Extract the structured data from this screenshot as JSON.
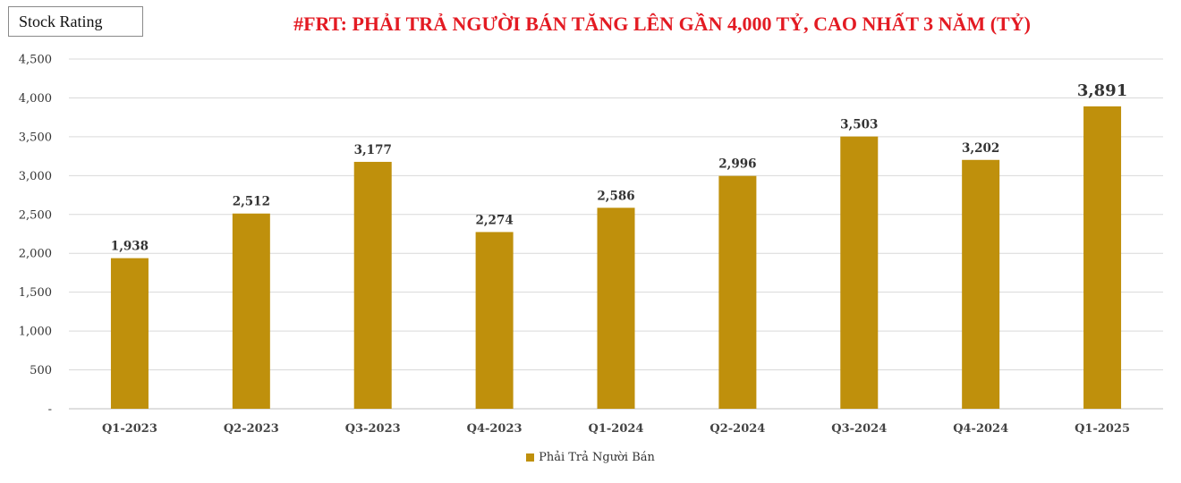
{
  "badge": {
    "label": "Stock Rating"
  },
  "colors": {
    "bar": "#bf900c",
    "highlight": "#e31b23",
    "grid": "#d9d9d9",
    "axis": "#bfbfbf"
  },
  "chart_data": {
    "type": "bar",
    "title": "#FRT: PHẢI TRẢ NGƯỜI BÁN TĂNG LÊN GẦN 4,000 TỶ, CAO NHẤT 3 NĂM (TỶ)",
    "categories": [
      "Q1-2023",
      "Q2-2023",
      "Q3-2023",
      "Q4-2023",
      "Q1-2024",
      "Q2-2024",
      "Q3-2024",
      "Q4-2024",
      "Q1-2025"
    ],
    "series": [
      {
        "name": "Phải Trả Người Bán",
        "values": [
          1938,
          2512,
          3177,
          2274,
          2586,
          2996,
          3503,
          3202,
          3891
        ]
      }
    ],
    "data_labels": [
      "1,938",
      "2,512",
      "3,177",
      "2,274",
      "2,586",
      "2,996",
      "3,503",
      "3,202",
      "3,891"
    ],
    "highlight_index": 8,
    "ylim": [
      0,
      4500
    ],
    "yticks": [
      0,
      500,
      1000,
      1500,
      2000,
      2500,
      3000,
      3500,
      4000,
      4500
    ],
    "ytick_labels": [
      "-",
      "500",
      "1,000",
      "1,500",
      "2,000",
      "2,500",
      "3,000",
      "3,500",
      "4,000",
      "4,500"
    ],
    "grid": true,
    "legend": "bottom-center"
  }
}
